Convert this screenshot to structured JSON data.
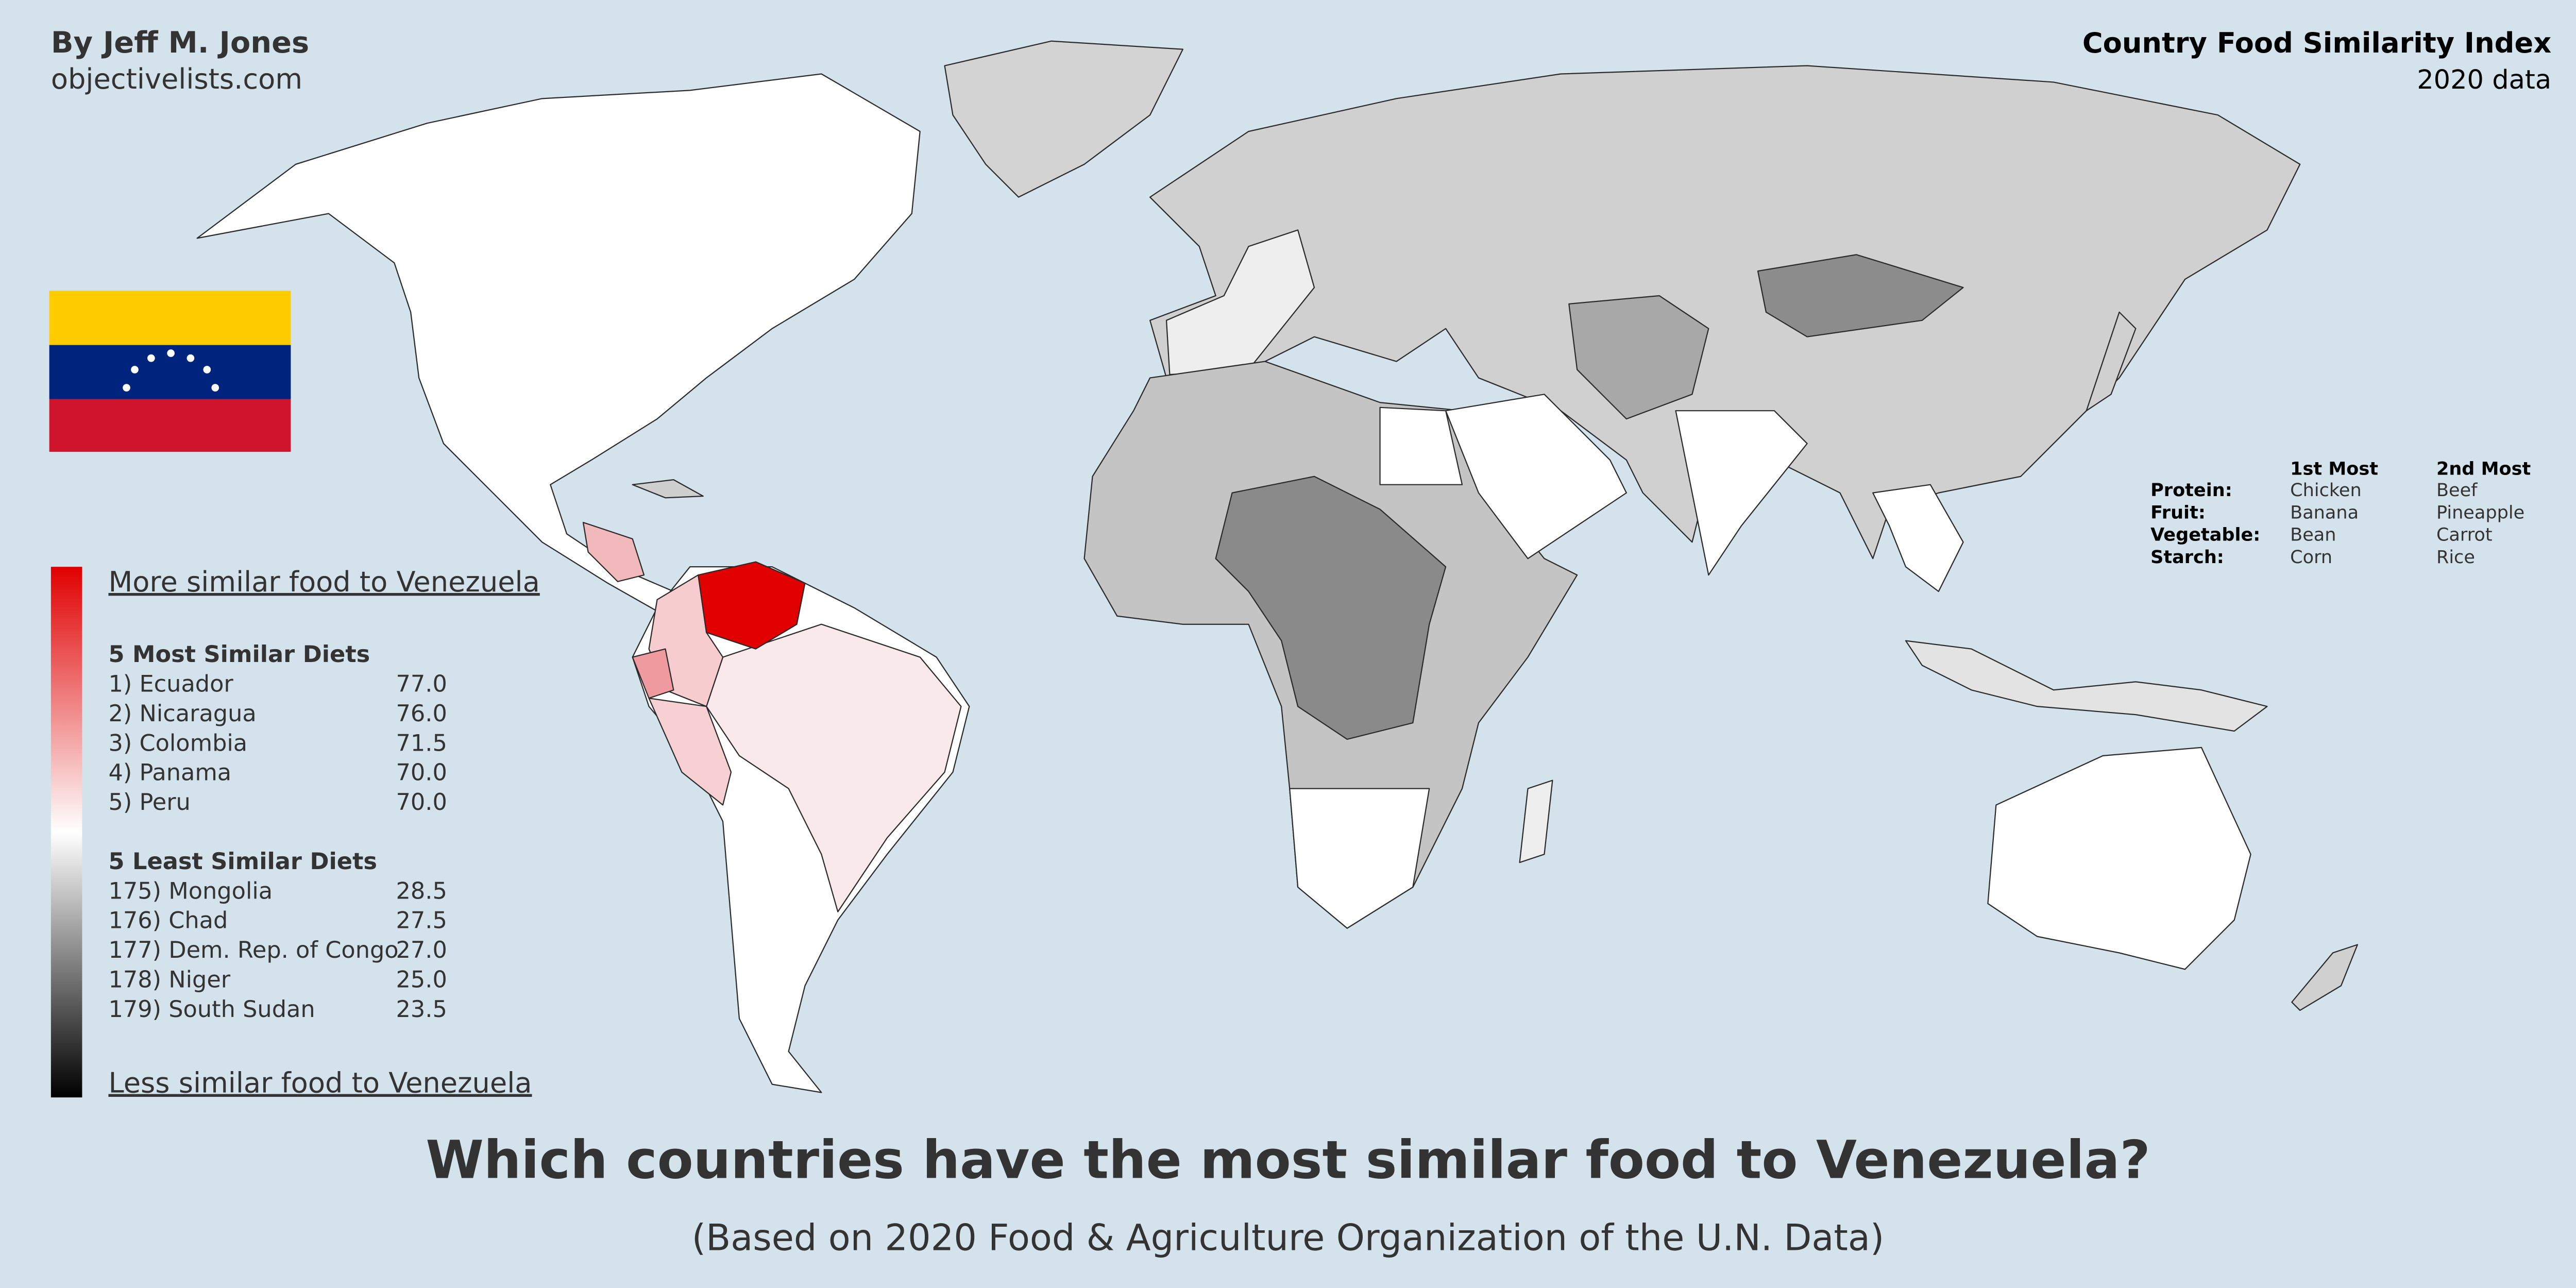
{
  "header": {
    "author": "By Jeff M. Jones",
    "website": "objectivelists.com",
    "title": "Country Food Similarity Index",
    "subtitle": "2020 data"
  },
  "legend": {
    "top_label": "More similar food to Venezuela",
    "bottom_label": "Less similar food to Venezuela",
    "most_heading": "5 Most Similar Diets",
    "most": [
      {
        "name": "1) Ecuador",
        "score": "77.0"
      },
      {
        "name": "2) Nicaragua",
        "score": "76.0"
      },
      {
        "name": "3) Colombia",
        "score": "71.5"
      },
      {
        "name": "4) Panama",
        "score": "70.0"
      },
      {
        "name": "5) Peru",
        "score": "70.0"
      }
    ],
    "least_heading": "5 Least Similar Diets",
    "least": [
      {
        "name": "175) Mongolia",
        "score": "28.5"
      },
      {
        "name": "176) Chad",
        "score": "27.5"
      },
      {
        "name": "177) Dem. Rep. of Congo",
        "score": "27.0"
      },
      {
        "name": "178) Niger",
        "score": "25.0"
      },
      {
        "name": "179) South Sudan",
        "score": "23.5"
      }
    ]
  },
  "foods": {
    "columns": [
      "1st Most",
      "2nd Most"
    ],
    "rows": [
      {
        "category": "Protein:",
        "first": "Chicken",
        "second": "Beef"
      },
      {
        "category": "Fruit:",
        "first": "Banana",
        "second": "Pineapple"
      },
      {
        "category": "Vegetable:",
        "first": "Bean",
        "second": "Carrot"
      },
      {
        "category": "Starch:",
        "first": "Corn",
        "second": "Rice"
      }
    ]
  },
  "footer": {
    "title": "Which countries have the most similar food to Venezuela?",
    "subtitle": "(Based on 2020 Food & Agriculture Organization of the U.N. Data)"
  }
}
